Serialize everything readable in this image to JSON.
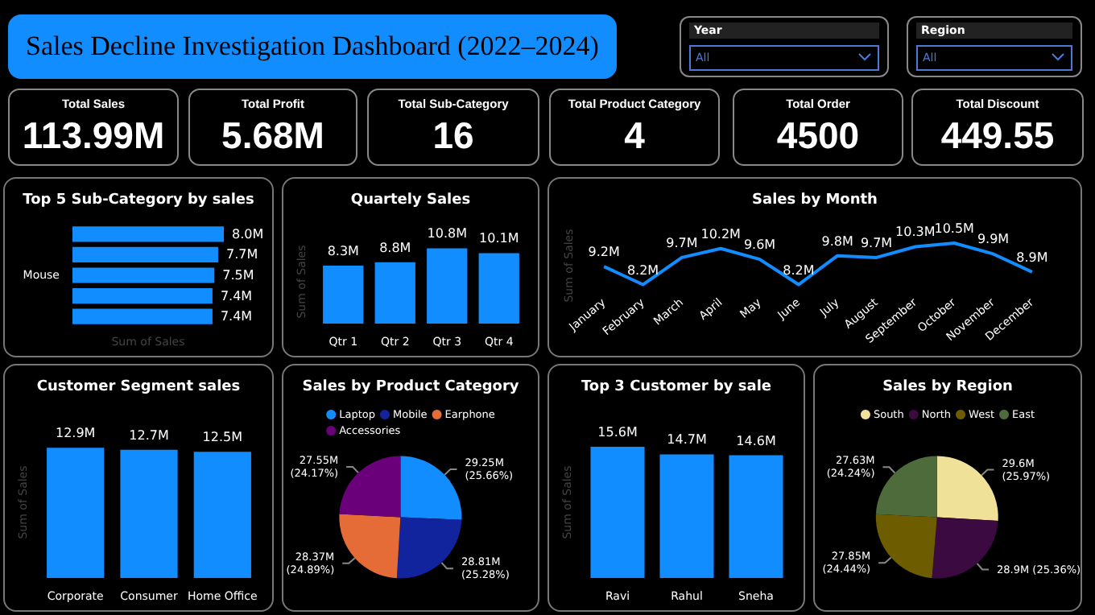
{
  "chart_data": [
    {
      "type": "other",
      "title": "Sales Decline Investigation Dashboard (2022–2024)",
      "annotations": [
        "Year",
        "All",
        "Region",
        "All"
      ]
    },
    {
      "type": "other",
      "categories": [
        "Total Sales",
        "Total Profit",
        "Total Sub-Category",
        "Total Product Category",
        "Total Order",
        "Total Discount"
      ],
      "value_labels": [
        "113.99M",
        "5.68M",
        "16",
        "4",
        "4500",
        "449.55"
      ]
    },
    {
      "type": "bar",
      "orientation": "horizontal",
      "title": "Top 5 Sub-Category by sales",
      "xlabel": "Sum of Sales",
      "categories": [
        null,
        null,
        "Mouse",
        null,
        null
      ],
      "values": [
        8.0,
        7.7,
        7.5,
        7.4,
        7.4
      ],
      "value_labels": [
        "8.0M",
        "7.7M",
        "7.5M",
        "7.4M",
        "7.4M"
      ],
      "color": "#118dff"
    },
    {
      "type": "bar",
      "title": "Quartely Sales",
      "ylabel": "Sum of Sales",
      "categories": [
        "Qtr 1",
        "Qtr 2",
        "Qtr 3",
        "Qtr 4"
      ],
      "values": [
        8.3,
        8.8,
        10.8,
        10.1
      ],
      "value_labels": [
        "8.3M",
        "8.8M",
        "10.8M",
        "10.1M"
      ],
      "color": "#118dff"
    },
    {
      "type": "line",
      "title": "Sales by Month",
      "ylabel": "Sum of Sales",
      "categories": [
        "January",
        "February",
        "March",
        "April",
        "May",
        "June",
        "July",
        "August",
        "September",
        "October",
        "November",
        "December"
      ],
      "values": [
        9.2,
        8.2,
        9.7,
        10.2,
        9.6,
        8.2,
        9.8,
        9.7,
        10.3,
        10.5,
        9.9,
        8.9
      ],
      "value_labels": [
        "9.2M",
        "8.2M",
        "9.7M",
        "10.2M",
        "9.6M",
        "8.2M",
        "9.8M",
        "9.7M",
        "10.3M",
        "10.5M",
        "9.9M",
        "8.9M"
      ],
      "color": "#118dff",
      "marker": "none"
    },
    {
      "type": "bar",
      "title": "Customer Segment sales",
      "ylabel": "Sum of Sales",
      "categories": [
        "Corporate",
        "Consumer",
        "Home Office"
      ],
      "values": [
        12.9,
        12.7,
        12.5
      ],
      "value_labels": [
        "12.9M",
        "12.7M",
        "12.5M"
      ],
      "color": "#118dff"
    },
    {
      "type": "pie",
      "title": "Sales by Product Category",
      "categories": [
        "Laptop",
        "Mobile",
        "Earphone",
        "Accessories"
      ],
      "values": [
        25.66,
        25.28,
        24.89,
        24.17
      ],
      "value_labels": [
        "29.25M\n(25.66%)",
        "28.81M\n(25.28%)",
        "28.37M\n(24.89%)",
        "27.55M\n(24.17%)"
      ],
      "colors": [
        "#118dff",
        "#12239e",
        "#e66c37",
        "#6b007b"
      ],
      "legend": "top"
    },
    {
      "type": "bar",
      "title": "Top 3 Customer by sale",
      "ylabel": "Sum of Sales",
      "categories": [
        "Ravi",
        "Rahul",
        "Sneha"
      ],
      "values": [
        15.6,
        14.7,
        14.6
      ],
      "value_labels": [
        "15.6M",
        "14.7M",
        "14.6M"
      ],
      "color": "#118dff"
    },
    {
      "type": "pie",
      "title": "Sales by Region",
      "categories": [
        "South",
        "North",
        "West",
        "East"
      ],
      "values": [
        25.97,
        25.36,
        24.44,
        24.24
      ],
      "value_labels": [
        "29.6M\n(25.97%)",
        "28.9M (25.36%)",
        "27.85M\n(24.44%)",
        "27.63M\n(24.24%)"
      ],
      "colors": [
        "#f0e199",
        "#3b0a40",
        "#6e5c00",
        "#4e6b3c"
      ],
      "legend": "top"
    }
  ]
}
